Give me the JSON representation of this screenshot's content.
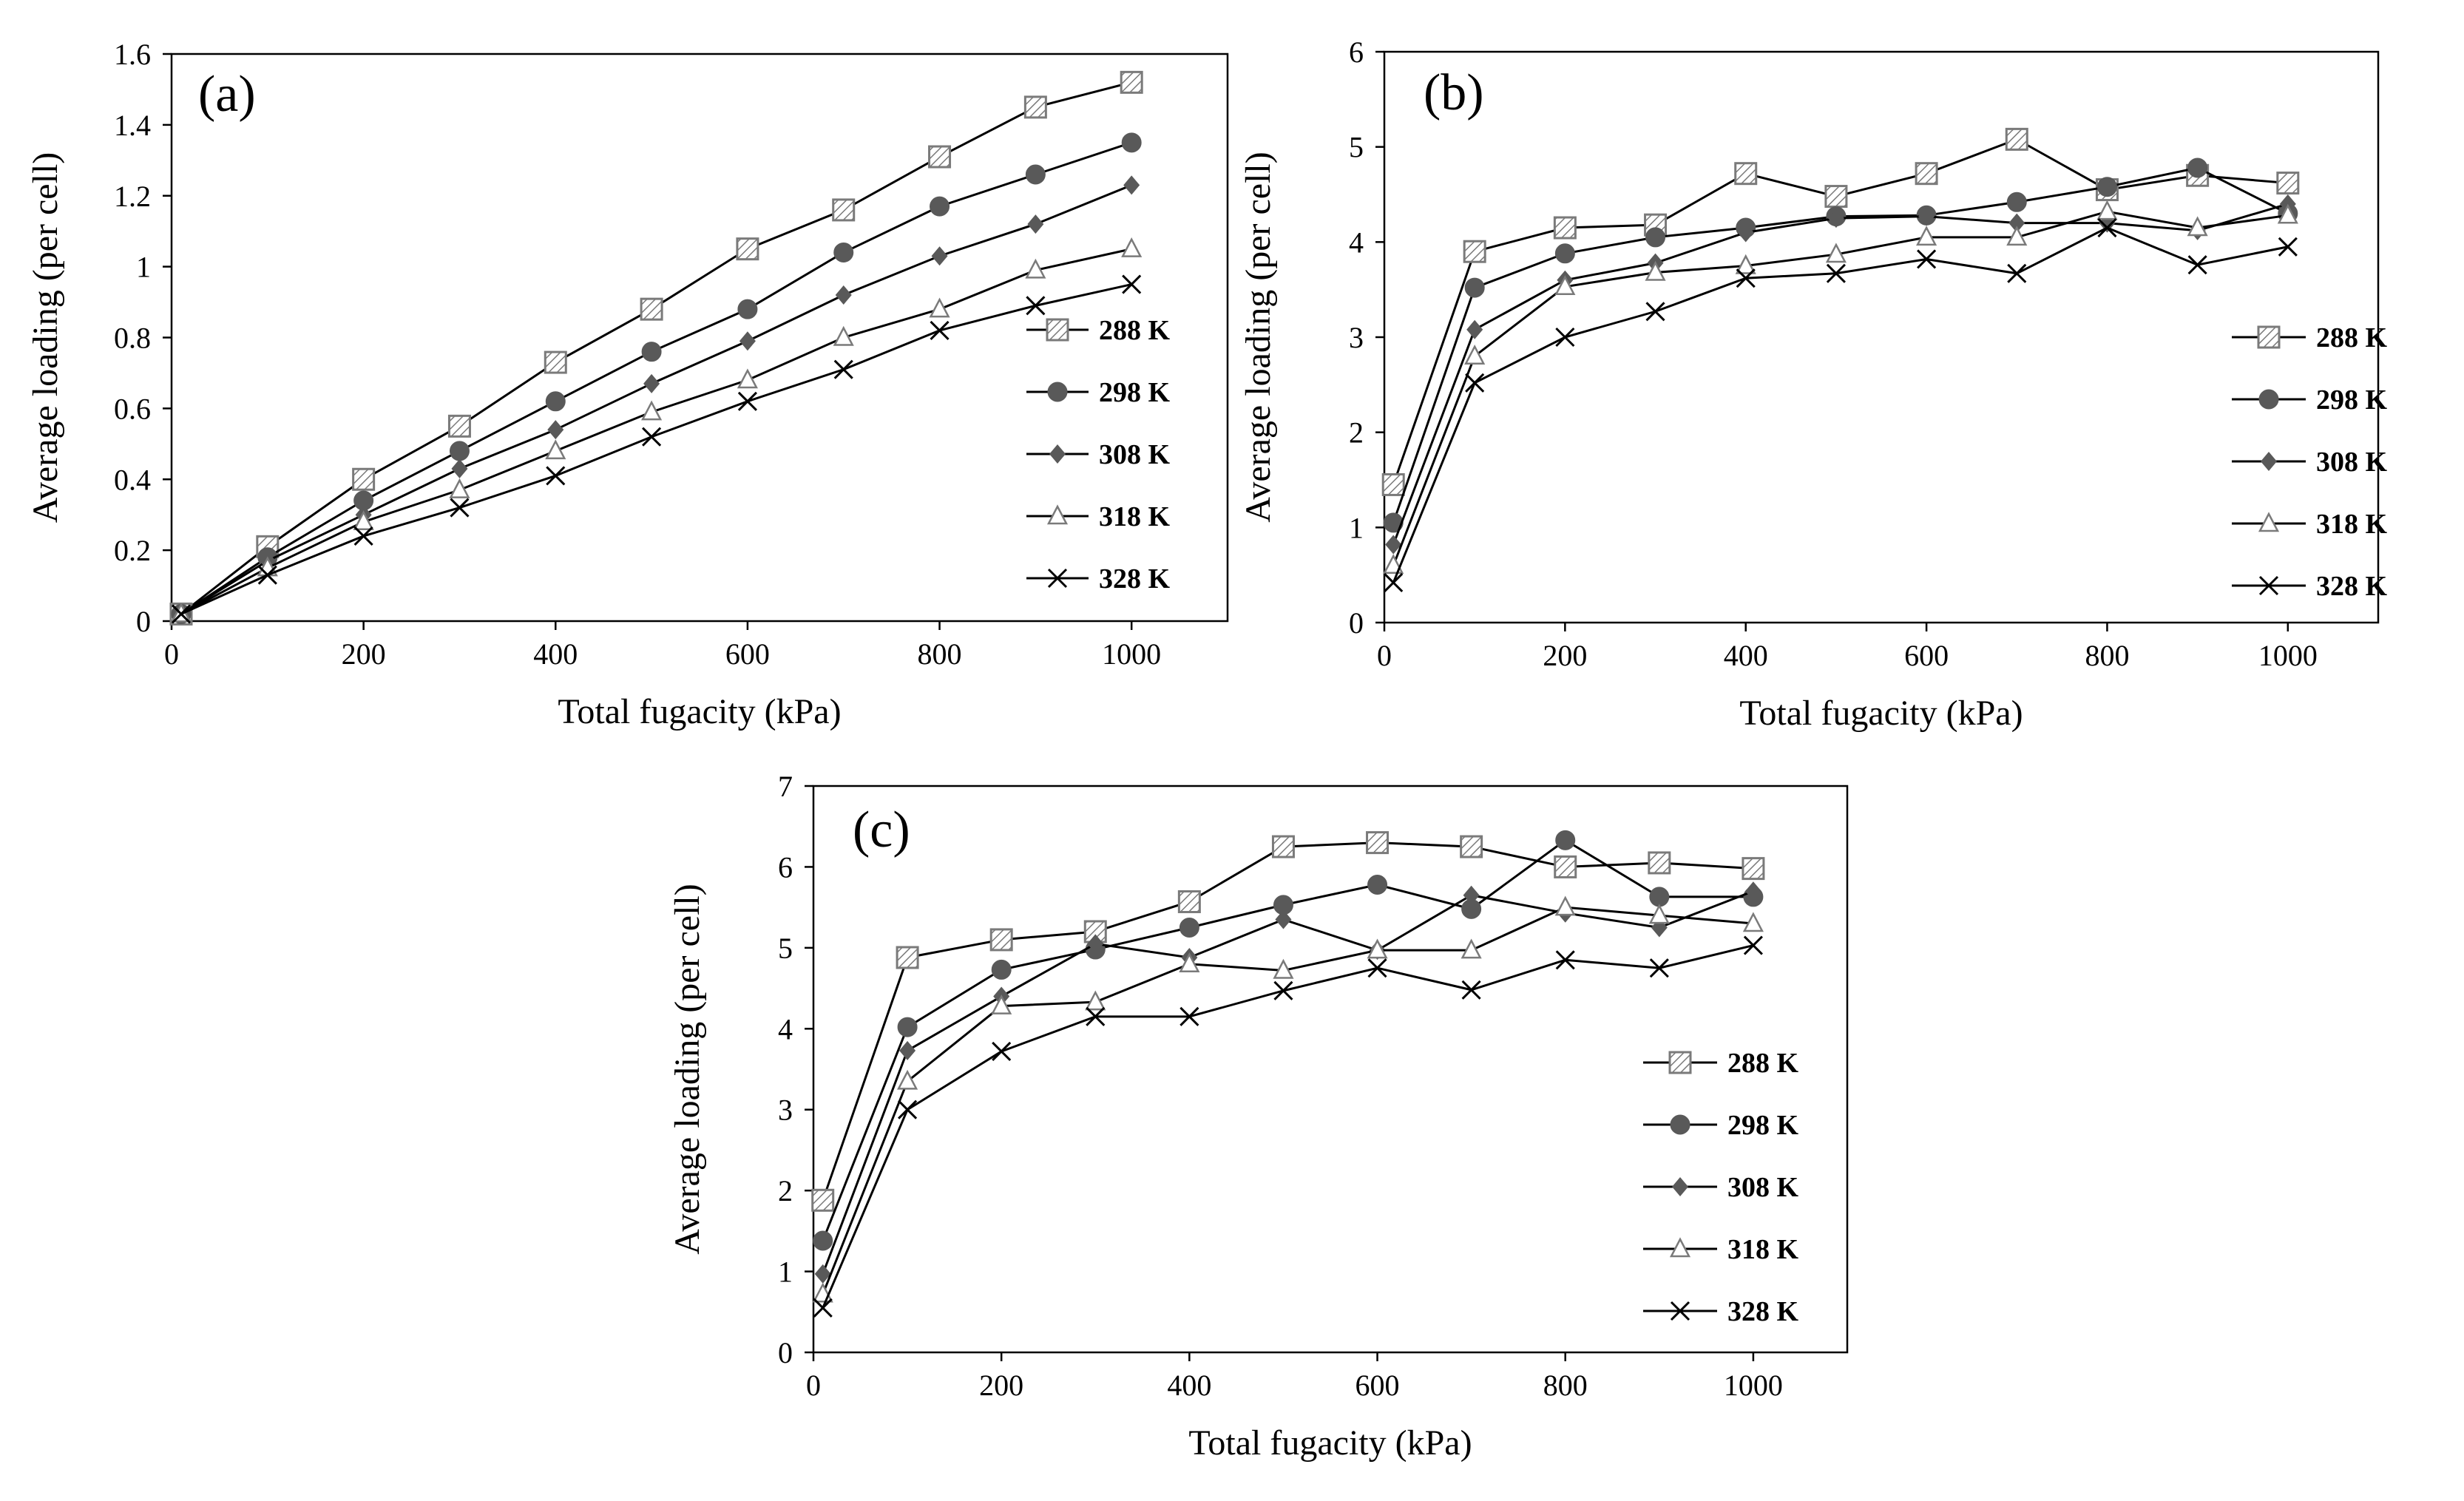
{
  "chart_data": [
    {
      "type": "line",
      "panel_label": "(a)",
      "xlabel": "Total fugacity (kPa)",
      "ylabel": "Average loading (per cell)",
      "xlim": [
        0,
        1100
      ],
      "ylim": [
        0,
        1.6
      ],
      "xticks": [
        0,
        200,
        400,
        600,
        800,
        1000
      ],
      "yticks": [
        0,
        0.2,
        0.4,
        0.6,
        0.8,
        1,
        1.2,
        1.4,
        1.6
      ],
      "ytick_labels": [
        "0",
        "0.2",
        "0.4",
        "0.6",
        "0.8",
        "1",
        "1.2",
        "1.4",
        "1.6"
      ],
      "legend_position": "right",
      "x": [
        10,
        100,
        200,
        300,
        400,
        500,
        600,
        700,
        800,
        900,
        1000
      ],
      "series": [
        {
          "name": "288 K",
          "marker": "hatched-square",
          "values": [
            0.02,
            0.21,
            0.4,
            0.55,
            0.73,
            0.88,
            1.05,
            1.16,
            1.31,
            1.45,
            1.52
          ]
        },
        {
          "name": "298 K",
          "marker": "circle",
          "values": [
            0.02,
            0.18,
            0.34,
            0.48,
            0.62,
            0.76,
            0.88,
            1.04,
            1.17,
            1.26,
            1.35
          ]
        },
        {
          "name": "308 K",
          "marker": "diamond",
          "values": [
            0.02,
            0.17,
            0.3,
            0.43,
            0.54,
            0.67,
            0.79,
            0.92,
            1.03,
            1.12,
            1.23
          ]
        },
        {
          "name": "318 K",
          "marker": "triangle",
          "values": [
            0.02,
            0.15,
            0.28,
            0.37,
            0.48,
            0.59,
            0.68,
            0.8,
            0.88,
            0.99,
            1.05
          ]
        },
        {
          "name": "328 K",
          "marker": "x",
          "values": [
            0.02,
            0.13,
            0.24,
            0.32,
            0.41,
            0.52,
            0.62,
            0.71,
            0.82,
            0.89,
            0.95
          ]
        }
      ]
    },
    {
      "type": "line",
      "panel_label": "(b)",
      "xlabel": "Total fugacity (kPa)",
      "ylabel": "Average loading (per cell)",
      "xlim": [
        0,
        1100
      ],
      "ylim": [
        0,
        6
      ],
      "xticks": [
        0,
        200,
        400,
        600,
        800,
        1000
      ],
      "yticks": [
        0,
        1,
        2,
        3,
        4,
        5,
        6
      ],
      "ytick_labels": [
        "0",
        "1",
        "2",
        "3",
        "4",
        "5",
        "6"
      ],
      "legend_position": "right",
      "x": [
        10,
        100,
        200,
        300,
        400,
        500,
        600,
        700,
        800,
        900,
        1000
      ],
      "series": [
        {
          "name": "288 K",
          "marker": "hatched-square",
          "values": [
            1.45,
            3.9,
            4.15,
            4.18,
            4.72,
            4.48,
            4.72,
            5.08,
            4.55,
            4.7,
            4.62
          ]
        },
        {
          "name": "298 K",
          "marker": "circle",
          "values": [
            1.05,
            3.52,
            3.88,
            4.05,
            4.15,
            4.27,
            4.28,
            4.42,
            4.58,
            4.78,
            4.3
          ]
        },
        {
          "name": "308 K",
          "marker": "diamond",
          "values": [
            0.82,
            3.08,
            3.6,
            3.78,
            4.1,
            4.25,
            4.27,
            4.2,
            4.2,
            4.12,
            4.4
          ]
        },
        {
          "name": "318 K",
          "marker": "triangle",
          "values": [
            0.6,
            2.8,
            3.53,
            3.68,
            3.75,
            3.87,
            4.05,
            4.05,
            4.32,
            4.15,
            4.28
          ]
        },
        {
          "name": "328 K",
          "marker": "x",
          "values": [
            0.42,
            2.52,
            3.0,
            3.27,
            3.62,
            3.67,
            3.82,
            3.67,
            4.15,
            3.76,
            3.95
          ]
        }
      ]
    },
    {
      "type": "line",
      "panel_label": "(c)",
      "xlabel": "Total fugacity (kPa)",
      "ylabel": "Average loading (per cell)",
      "xlim": [
        0,
        1100
      ],
      "ylim": [
        0,
        7
      ],
      "xticks": [
        0,
        200,
        400,
        600,
        800,
        1000
      ],
      "yticks": [
        0,
        1,
        2,
        3,
        4,
        5,
        6,
        7
      ],
      "ytick_labels": [
        "0",
        "1",
        "2",
        "3",
        "4",
        "5",
        "6",
        "7"
      ],
      "legend_position": "right",
      "x": [
        10,
        100,
        200,
        300,
        400,
        500,
        600,
        700,
        800,
        900,
        1000
      ],
      "series": [
        {
          "name": "288 K",
          "marker": "hatched-square",
          "values": [
            1.88,
            4.88,
            5.1,
            5.2,
            5.57,
            6.25,
            6.3,
            6.25,
            6.0,
            6.05,
            5.98
          ]
        },
        {
          "name": "298 K",
          "marker": "circle",
          "values": [
            1.38,
            4.02,
            4.73,
            4.98,
            5.25,
            5.53,
            5.78,
            5.48,
            6.33,
            5.63,
            5.63
          ]
        },
        {
          "name": "308 K",
          "marker": "diamond",
          "values": [
            0.97,
            3.73,
            4.4,
            5.05,
            4.88,
            5.35,
            4.97,
            5.65,
            5.43,
            5.25,
            5.7
          ]
        },
        {
          "name": "318 K",
          "marker": "triangle",
          "values": [
            0.72,
            3.35,
            4.28,
            4.33,
            4.8,
            4.72,
            4.97,
            4.97,
            5.5,
            5.4,
            5.3
          ]
        },
        {
          "name": "328 K",
          "marker": "x",
          "values": [
            0.55,
            3.0,
            3.72,
            4.15,
            4.15,
            4.47,
            4.75,
            4.48,
            4.85,
            4.75,
            5.03
          ]
        }
      ]
    }
  ]
}
